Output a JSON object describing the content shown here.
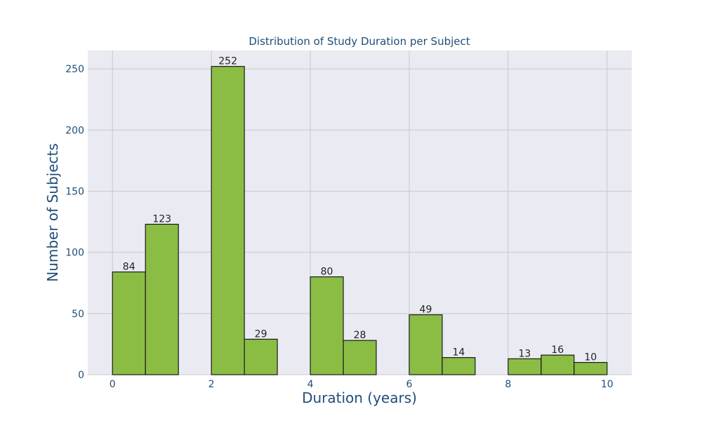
{
  "chart_data": {
    "type": "bar",
    "title": "Distribution of Study Duration per Subject",
    "xlabel": "Duration (years)",
    "ylabel": "Number of Subjects",
    "xlim": [
      -0.5,
      10.5
    ],
    "ylim": [
      0,
      265
    ],
    "x_ticks": [
      0,
      2,
      4,
      6,
      8,
      10
    ],
    "y_ticks": [
      0,
      50,
      100,
      150,
      200,
      250
    ],
    "grid": true,
    "bin_width": 0.667,
    "bins": [
      {
        "start": 0.0,
        "end": 0.667,
        "value": 84
      },
      {
        "start": 0.667,
        "end": 1.333,
        "value": 123
      },
      {
        "start": 2.0,
        "end": 2.667,
        "value": 252
      },
      {
        "start": 2.667,
        "end": 3.333,
        "value": 29
      },
      {
        "start": 4.0,
        "end": 4.667,
        "value": 80
      },
      {
        "start": 4.667,
        "end": 5.333,
        "value": 28
      },
      {
        "start": 6.0,
        "end": 6.667,
        "value": 49
      },
      {
        "start": 6.667,
        "end": 7.333,
        "value": 14
      },
      {
        "start": 8.0,
        "end": 8.667,
        "value": 13
      },
      {
        "start": 8.667,
        "end": 9.333,
        "value": 16
      },
      {
        "start": 9.333,
        "end": 10.0,
        "value": 10
      }
    ],
    "colors": {
      "bar_fill": "#8bbd45",
      "bar_edge": "#1a1a1a",
      "plot_background": "#eaeaf2",
      "grid": "#c8c8cc",
      "text": "#1f4e79",
      "data_label": "#222222"
    }
  }
}
